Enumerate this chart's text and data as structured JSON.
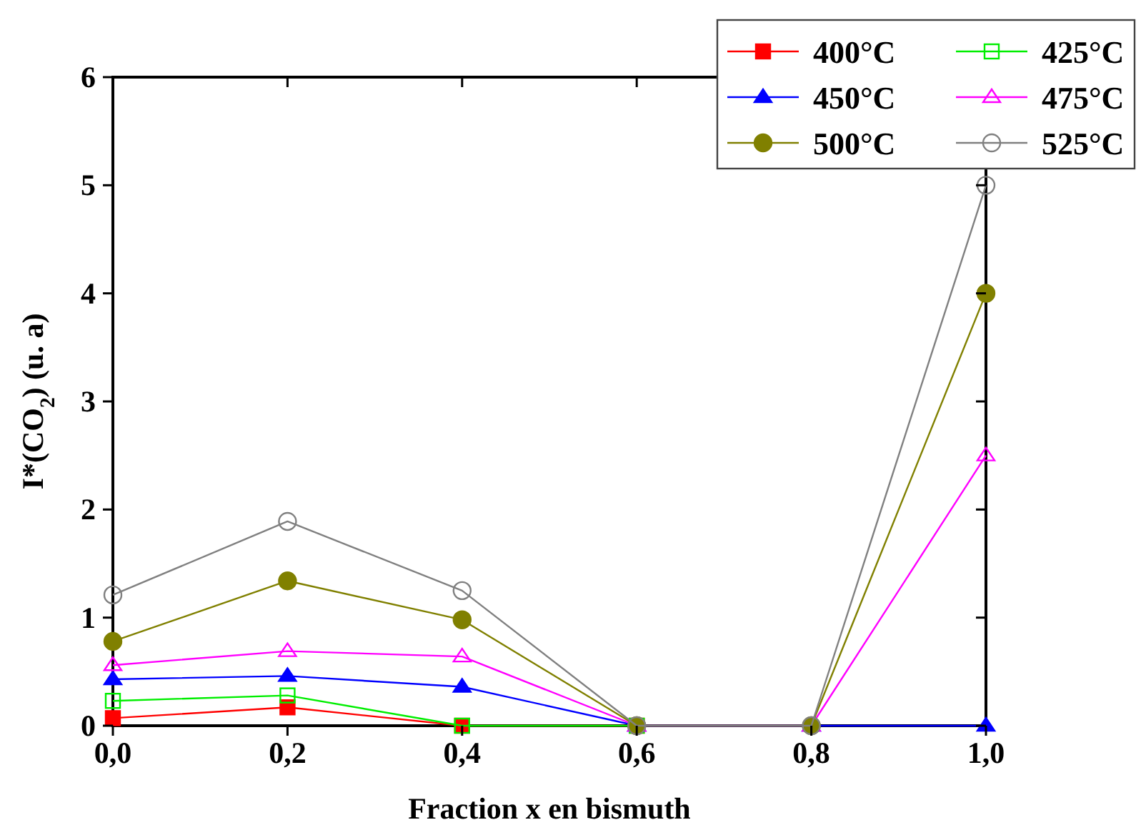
{
  "chart_data": {
    "type": "line",
    "xlabel": "Fraction x en bismuth",
    "ylabel": "I*(CO$_{2}$) (u. a)",
    "x": [
      0,
      0.2,
      0.4,
      0.6,
      0.8,
      1.0
    ],
    "xlim": [
      0,
      1.0
    ],
    "xticks": [
      {
        "value": 0,
        "label": "0,0"
      },
      {
        "value": 0.2,
        "label": "0,2"
      },
      {
        "value": 0.4,
        "label": "0,4"
      },
      {
        "value": 0.6,
        "label": "0,6"
      },
      {
        "value": 0.8,
        "label": "0,8"
      },
      {
        "value": 1.0,
        "label": "1,0"
      }
    ],
    "ylim": [
      0,
      6
    ],
    "yticks": [
      0,
      1,
      2,
      3,
      4,
      5,
      6
    ],
    "grid": false,
    "legend": "top right",
    "series": [
      {
        "name": "400°C",
        "color": "#ff0000",
        "marker": "square",
        "values": [
          0.07,
          0.17,
          0,
          0,
          null,
          null
        ]
      },
      {
        "name": "425°C",
        "color": "#00ee00",
        "marker": "square",
        "values": [
          0.23,
          0.28,
          0,
          0,
          null,
          null
        ]
      },
      {
        "name": "450°C",
        "color": "#0000ff",
        "marker": "triangle",
        "values": [
          0.43,
          0.46,
          0.36,
          0,
          0,
          0
        ]
      },
      {
        "name": "475°C",
        "color": "#ff00ff",
        "marker": "triangle",
        "values": [
          0.56,
          0.69,
          0.64,
          0,
          0,
          2.5
        ]
      },
      {
        "name": "500°C",
        "color": "#808000",
        "marker": "circle",
        "values": [
          0.78,
          1.34,
          0.98,
          0,
          0,
          4.0
        ]
      },
      {
        "name": "525°C",
        "color": "#808080",
        "marker": "circle",
        "values": [
          1.21,
          1.89,
          1.25,
          0,
          0,
          5.0
        ]
      }
    ]
  }
}
